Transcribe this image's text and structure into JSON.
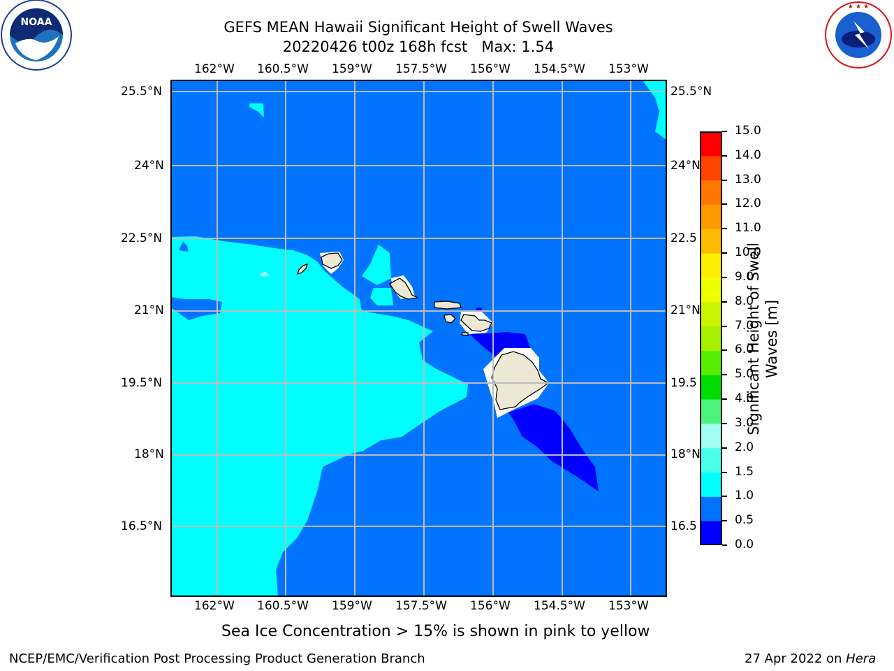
{
  "title": {
    "line1": "GEFS MEAN Hawaii Significant Height of Swell Waves",
    "line2": "20220426 t00z 168h fcst   Max: 1.54"
  },
  "logos": {
    "noaa": {
      "text": "NOAA",
      "icon": "noaa-logo-icon"
    },
    "nws": {
      "text": "NATIONAL WEATHER SERVICE",
      "icon": "nws-logo-icon"
    }
  },
  "map": {
    "lon_ticks": [
      "162°W",
      "160.5°W",
      "159°W",
      "157.5°W",
      "156°W",
      "154.5°W",
      "153°W"
    ],
    "lat_ticks": [
      "25.5°N",
      "24°N",
      "22.5°N",
      "21°N",
      "19.5°N",
      "18°N",
      "16.5°N"
    ],
    "lat_ticks_right": [
      "25.5°N",
      "24°N",
      "22.5",
      "21°N",
      "19.5",
      "18°N",
      "16.5"
    ]
  },
  "colorbar": {
    "label_line1": "Significant Height of Swell",
    "label_line2": "Waves [m]",
    "ticks": [
      "0.0",
      "0.5",
      "1.0",
      "1.5",
      "2.0",
      "3.0",
      "4.0",
      "5.0",
      "6.0",
      "7.0",
      "8.0",
      "9.0",
      "10.0",
      "11.0",
      "12.0",
      "13.0",
      "14.0",
      "15.0"
    ],
    "colors": [
      "#0000ff",
      "#0074ff",
      "#00ffff",
      "#4cffea",
      "#a0fff0",
      "#4cf57a",
      "#00dd00",
      "#55ee00",
      "#a8f000",
      "#ccf500",
      "#eeff00",
      "#ffee00",
      "#ffbb00",
      "#ff9900",
      "#ff7700",
      "#ff4400",
      "#ff0000"
    ]
  },
  "colors": {
    "deep_blue": "#0000ff",
    "ocean_blue": "#0074ff",
    "cyan": "#00ffff",
    "land": "#ede8d6",
    "grid": "#bbbbbb"
  },
  "note": "Sea Ice Concentration > 15% is shown in pink to yellow",
  "footer": {
    "left": "NCEP/EMC/Verification Post Processing Product Generation Branch",
    "date": "27 Apr 2022 on ",
    "machine": "Hera"
  }
}
